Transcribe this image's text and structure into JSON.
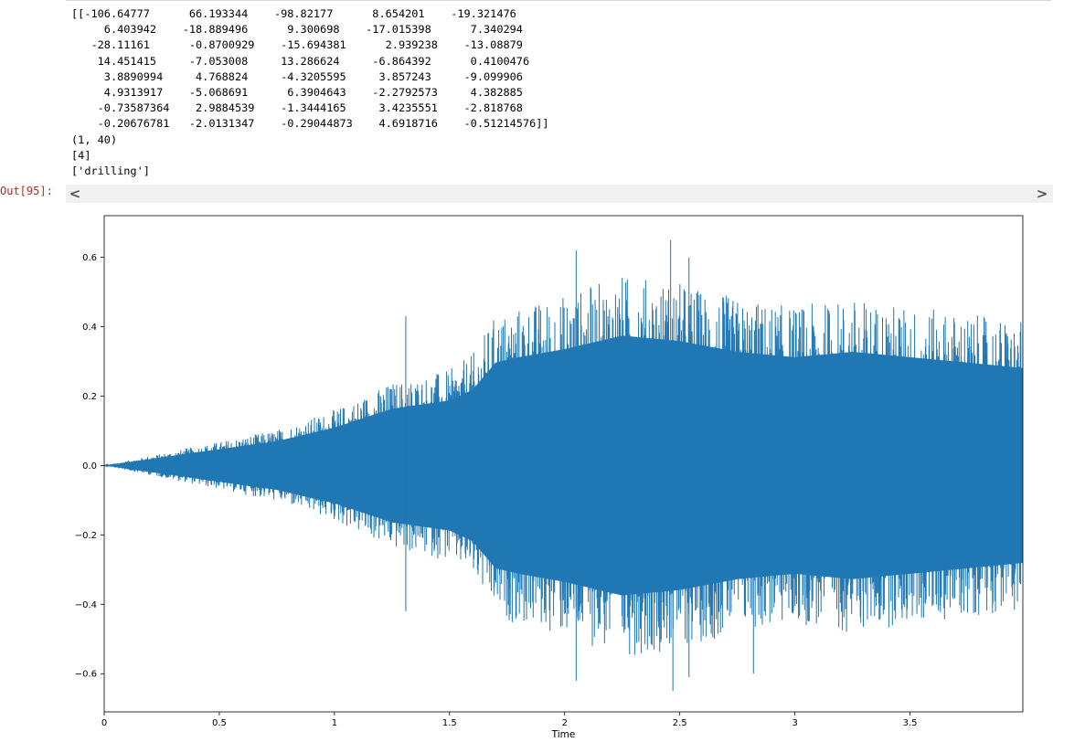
{
  "cell_output": {
    "lines": [
      "[[-106.64777      66.193344    -98.82177      8.654201    -19.321476",
      "     6.403942    -18.889496      9.300698    -17.015398      7.340294",
      "   -28.11161      -0.8700929    -15.694381      2.939238    -13.08879",
      "    14.451415     -7.053008     13.286624     -6.864392      0.4100476",
      "     3.8890994     4.768824     -4.3205595     3.857243     -9.099906",
      "     4.9313917    -5.068691      6.3904643    -2.2792573     4.382885",
      "    -0.73587364    2.9884539    -1.3444165     3.4235551    -2.818768",
      "    -0.20676781   -2.0131347    -0.29044873    4.6918716    -0.51214576]]",
      "(1, 40)",
      "[4]",
      "['drilling']"
    ]
  },
  "out_prompt": "Out[95]:",
  "scrollbar": {
    "left_icon": "chevron-left-icon",
    "left_glyph": "<",
    "right_icon": "chevron-right-icon",
    "right_glyph": ">"
  },
  "chart_data": {
    "type": "line",
    "title": "",
    "xlabel": "Time",
    "ylabel": "",
    "xlim": [
      0,
      3.99
    ],
    "ylim": [
      -0.71,
      0.72
    ],
    "xticks": [
      0,
      0.5,
      1,
      1.5,
      2,
      2.5,
      3,
      3.5
    ],
    "xtick_labels": [
      "0",
      "0.5",
      "1",
      "1.5",
      "2",
      "2.5",
      "3",
      "3.5"
    ],
    "yticks": [
      -0.6,
      -0.4,
      -0.2,
      0.0,
      0.2,
      0.4,
      0.6
    ],
    "ytick_labels": [
      "−0.6",
      "−0.4",
      "−0.2",
      "0.0",
      "0.2",
      "0.4",
      "0.6"
    ],
    "series": [
      {
        "color": "#1f77b4",
        "envelope": {
          "t": [
            0,
            0.25,
            0.5,
            0.75,
            1.0,
            1.25,
            1.5,
            1.6,
            1.7,
            1.8,
            2.0,
            2.25,
            2.5,
            2.75,
            3.0,
            3.25,
            3.5,
            3.75,
            3.99
          ],
          "upper": [
            0.0,
            0.03,
            0.06,
            0.09,
            0.14,
            0.21,
            0.24,
            0.28,
            0.38,
            0.4,
            0.43,
            0.48,
            0.46,
            0.42,
            0.4,
            0.42,
            0.4,
            0.38,
            0.36
          ],
          "lower": [
            0.0,
            -0.03,
            -0.06,
            -0.09,
            -0.14,
            -0.21,
            -0.24,
            -0.28,
            -0.38,
            -0.4,
            -0.43,
            -0.48,
            -0.46,
            -0.42,
            -0.4,
            -0.42,
            -0.4,
            -0.38,
            -0.36
          ]
        },
        "peaks": [
          {
            "t": 1.31,
            "value": 0.43
          },
          {
            "t": 1.31,
            "value": -0.42
          },
          {
            "t": 2.46,
            "value": 0.65
          },
          {
            "t": 2.47,
            "value": -0.65
          },
          {
            "t": 2.05,
            "value": 0.62
          },
          {
            "t": 2.05,
            "value": -0.62
          },
          {
            "t": 2.54,
            "value": 0.6
          },
          {
            "t": 2.54,
            "value": -0.61
          },
          {
            "t": 2.82,
            "value": -0.6
          }
        ]
      }
    ]
  }
}
